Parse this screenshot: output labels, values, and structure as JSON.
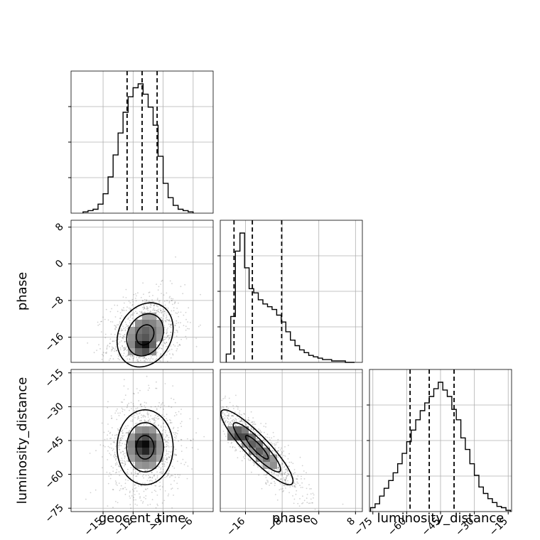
{
  "chart_data": {
    "type": "corner",
    "parameters": [
      "geocent_time",
      "phase",
      "luminosity_distance"
    ],
    "ranges": {
      "geocent_time": [
        -18.2,
        -4.0
      ],
      "phase": [
        -21.5,
        9.5
      ],
      "luminosity_distance": [
        -76.5,
        -13.5
      ]
    },
    "ticks": {
      "geocent_time": [
        -15,
        -12,
        -9,
        -6
      ],
      "phase": [
        -16,
        -8,
        0,
        8
      ],
      "luminosity_distance": [
        -75,
        -60,
        -45,
        -30,
        -15
      ]
    },
    "tick_labels": {
      "geocent_time": [
        "−15",
        "−12",
        "−9",
        "−6"
      ],
      "phase": [
        "−16",
        "−8",
        "0",
        "8"
      ],
      "luminosity_distance": [
        "−75",
        "−60",
        "−45",
        "−30",
        "−15"
      ]
    },
    "quantiles": {
      "geocent_time": [
        -12.6,
        -11.1,
        -9.6
      ],
      "phase": [
        -18.5,
        -14.5,
        -8.1
      ],
      "luminosity_distance": [
        -58.5,
        -50.0,
        -39.0
      ]
    },
    "histograms": {
      "geocent_time": {
        "edges": [
          -17.0,
          -16.5,
          -16.0,
          -15.5,
          -15.0,
          -14.5,
          -14.0,
          -13.5,
          -13.0,
          -12.5,
          -12.0,
          -11.5,
          -11.0,
          -10.5,
          -10.0,
          -9.5,
          -9.0,
          -8.5,
          -8.0,
          -7.5,
          -7.0,
          -6.5,
          -6.0
        ],
        "counts": [
          1,
          2,
          3,
          7,
          15,
          28,
          45,
          62,
          78,
          90,
          97,
          100,
          92,
          82,
          68,
          44,
          23,
          12,
          6,
          3,
          2,
          1
        ]
      },
      "phase": {
        "edges": [
          -20.2,
          -19.2,
          -18.2,
          -17.2,
          -16.2,
          -15.2,
          -14.2,
          -13.2,
          -12.2,
          -11.2,
          -10.2,
          -9.2,
          -8.2,
          -7.2,
          -6.2,
          -5.2,
          -4.2,
          -3.2,
          -2.2,
          -1.2,
          -0.2,
          0.8,
          1.8,
          2.8,
          3.8,
          4.8,
          5.8,
          6.8,
          7.8
        ],
        "counts": [
          6,
          33,
          80,
          93,
          68,
          53,
          50,
          45,
          42,
          40,
          38,
          34,
          29,
          22,
          16,
          12,
          9,
          7,
          5,
          4,
          3,
          2,
          2,
          1,
          1,
          1,
          0,
          0
        ]
      },
      "luminosity_distance": {
        "edges": [
          -76,
          -74,
          -72,
          -70,
          -68,
          -66,
          -64,
          -62,
          -60,
          -58,
          -56,
          -54,
          -52,
          -50,
          -48,
          -46,
          -44,
          -42,
          -40,
          -38,
          -36,
          -34,
          -32,
          -30,
          -28,
          -26,
          -24,
          -22,
          -20,
          -18,
          -16,
          -14
        ],
        "counts": [
          3,
          6,
          12,
          18,
          24,
          30,
          37,
          45,
          54,
          63,
          71,
          78,
          84,
          89,
          95,
          100,
          94,
          89,
          79,
          71,
          57,
          48,
          37,
          28,
          19,
          14,
          10,
          7,
          4,
          3,
          1
        ]
      }
    },
    "density_2d": {
      "phase_vs_geocent_time": {
        "x": "geocent_time",
        "y": "phase",
        "mean": [
          -10.8,
          -15.5
        ],
        "sd": [
          1.6,
          4.0
        ],
        "rho": 0.2,
        "peak": [
          -10.9,
          -18.2
        ]
      },
      "luminosity_distance_vs_geocent_time": {
        "x": "geocent_time",
        "y": "luminosity_distance",
        "mean": [
          -10.8,
          -48.0
        ],
        "sd": [
          1.6,
          9.5
        ],
        "rho": 0.0,
        "peak": [
          -10.9,
          -47.0
        ]
      },
      "luminosity_distance_vs_phase": {
        "x": "phase",
        "y": "luminosity_distance",
        "mean": [
          -13.5,
          -48.0
        ],
        "sd": [
          4.5,
          9.5
        ],
        "rho": -0.9,
        "peak": [
          -18.5,
          -43.0
        ]
      }
    },
    "grid": true,
    "colors": {
      "line": "#000000",
      "grid": "#b0b0b0",
      "points": "#000000",
      "cell_max": "#000000"
    }
  }
}
